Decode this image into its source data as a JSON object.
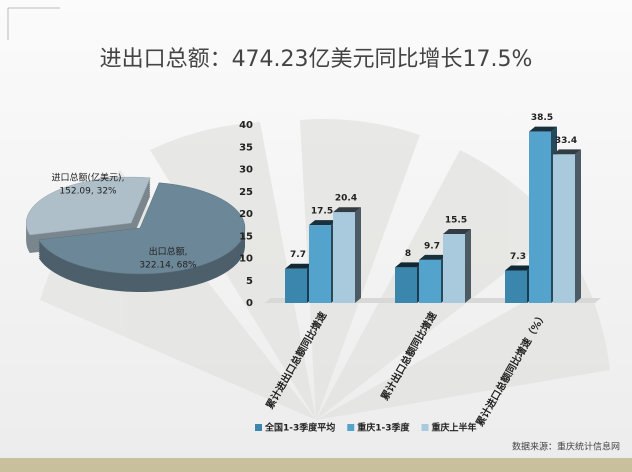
{
  "title": "进出口总额：474.23亿美元同比增长17.5%",
  "source": "数据来源：重庆统计信息网",
  "chart_data": [
    {
      "type": "pie",
      "categories": [
        "进口总额(亿美元),",
        "出口总额,"
      ],
      "values": [
        152.09,
        322.14
      ],
      "value_labels": [
        "152.09, 32%",
        "322.14, 68%"
      ],
      "colors": [
        "#aebfc9",
        "#6c8797"
      ]
    },
    {
      "type": "bar",
      "categories": [
        "累计进出口总额同比增速",
        "累计出口总额同比增速",
        "累计进口总额同比增速（%）"
      ],
      "series": [
        {
          "name": "全国1-3季度平均",
          "color": "#3b86ad",
          "values": [
            7.7,
            8,
            7.3
          ]
        },
        {
          "name": "重庆1-3季度",
          "color": "#54a3cc",
          "values": [
            17.5,
            9.7,
            38.5
          ]
        },
        {
          "name": "重庆上半年",
          "color": "#a9c9dc",
          "values": [
            20.4,
            15.5,
            33.4
          ]
        }
      ],
      "ylim": [
        0,
        40
      ],
      "yticks": [
        0,
        5,
        10,
        15,
        20,
        25,
        30,
        35,
        40
      ],
      "grid": false
    }
  ]
}
